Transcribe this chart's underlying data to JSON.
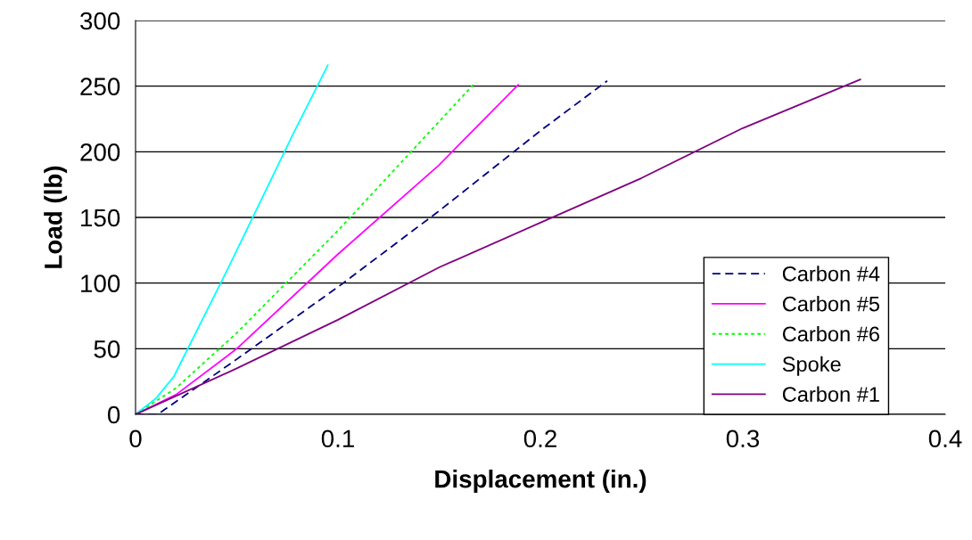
{
  "chart_data": {
    "type": "line",
    "xlabel": "Displacement (in.)",
    "ylabel": "Load (lb)",
    "xlim": [
      0,
      0.4
    ],
    "xticks": [
      0,
      0.1,
      0.2,
      0.3,
      0.4
    ],
    "ylim": [
      0,
      300
    ],
    "yticks": [
      0,
      50,
      100,
      150,
      200,
      250,
      300
    ],
    "grid": "y",
    "legend": "bottom right",
    "marker": "none",
    "series": [
      {
        "name": "Carbon #4",
        "color": "#000080",
        "line_style": "dashed",
        "x": [
          0,
          0.011,
          0.05,
          0.1,
          0.15,
          0.2,
          0.233
        ],
        "values": [
          0,
          0,
          42,
          97,
          155,
          216,
          254
        ]
      },
      {
        "name": "Carbon #5",
        "color": "#ff00ff",
        "line_style": "solid",
        "x": [
          0,
          0.02,
          0.05,
          0.1,
          0.15,
          0.189
        ],
        "values": [
          0,
          15,
          50,
          122,
          190,
          251
        ]
      },
      {
        "name": "Carbon #6",
        "color": "#00ff00",
        "line_style": "dotted",
        "x": [
          0,
          0.02,
          0.05,
          0.1,
          0.168
        ],
        "values": [
          0,
          20,
          62,
          140,
          253
        ]
      },
      {
        "name": "Spoke",
        "color": "#00ffff",
        "line_style": "solid",
        "x": [
          0,
          0.01,
          0.019,
          0.045,
          0.078,
          0.095
        ],
        "values": [
          0,
          12,
          29,
          109,
          214,
          266
        ]
      },
      {
        "name": "Carbon #1",
        "color": "#800080",
        "line_style": "solid",
        "x": [
          0,
          0.05,
          0.1,
          0.15,
          0.2,
          0.25,
          0.3,
          0.358
        ],
        "values": [
          0,
          35,
          72,
          112,
          146,
          180,
          218,
          255
        ]
      }
    ]
  }
}
